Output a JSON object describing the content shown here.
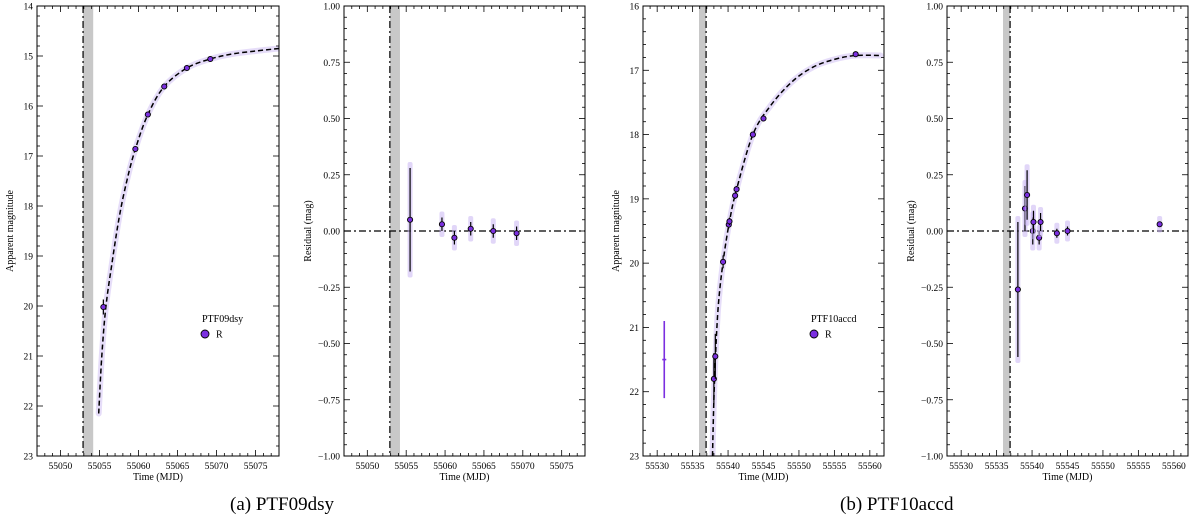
{
  "captions": {
    "a": "(a) PTF09dsy",
    "b": "(b) PTF10accd"
  },
  "colors": {
    "data": "#7b2fe0",
    "model_band": "#c8b4f2",
    "fit_line": "#000000",
    "shaded_region": "#c8c8c8"
  },
  "chart_data": [
    {
      "type": "scatter",
      "title": "",
      "xlabel": "Time (MJD)",
      "ylabel": "Apparent magnitude",
      "xlim": [
        55047,
        55078
      ],
      "ylim": [
        23,
        14
      ],
      "y_inverted": true,
      "xticks": [
        55050,
        55055,
        55060,
        55065,
        55070,
        55075
      ],
      "yticks": [
        14,
        15,
        16,
        17,
        18,
        19,
        20,
        21,
        22,
        23
      ],
      "vline": 55052.9,
      "shaded_x": [
        55052.9,
        55054.2
      ],
      "legend": {
        "title": "PTF09dsy",
        "entries": [
          "R"
        ],
        "placement": "center-right"
      },
      "series": [
        {
          "name": "R",
          "x": [
            55055.5,
            55059.6,
            55061.2,
            55063.3,
            55066.2,
            55069.2
          ],
          "y": [
            20.02,
            16.86,
            16.17,
            15.61,
            15.24,
            15.06
          ],
          "yerr": [
            0.15,
            0.04,
            0.04,
            0.03,
            0.03,
            0.03
          ]
        }
      ],
      "fit_curve": {
        "x": [
          55054.9,
          55055.3,
          55055.8,
          55056.5,
          55057.5,
          55058.5,
          55059.6,
          55061.2,
          55063.3,
          55066.2,
          55069.2,
          55072,
          55075,
          55078
        ],
        "y": [
          22.15,
          21.0,
          20.05,
          19.25,
          18.25,
          17.5,
          16.86,
          16.17,
          15.61,
          15.24,
          15.06,
          14.96,
          14.9,
          14.85
        ]
      }
    },
    {
      "type": "scatter",
      "title": "",
      "xlabel": "Time (MJD)",
      "ylabel": "Residual (mag)",
      "xlim": [
        55047,
        55078
      ],
      "ylim": [
        -1.0,
        1.0
      ],
      "xticks": [
        55050,
        55055,
        55060,
        55065,
        55070,
        55075
      ],
      "yticks": [
        -1.0,
        -0.75,
        -0.5,
        -0.25,
        0.0,
        0.25,
        0.5,
        0.75,
        1.0
      ],
      "ytick_labels": [
        "−1.00",
        "−0.75",
        "−0.50",
        "−0.25",
        "0.00",
        "0.25",
        "0.50",
        "0.75",
        "1.00"
      ],
      "vline": 55052.9,
      "shaded_x": [
        55052.9,
        55054.2
      ],
      "hline": 0,
      "series": [
        {
          "name": "R",
          "x": [
            55055.5,
            55059.6,
            55061.2,
            55063.3,
            55066.2,
            55069.2
          ],
          "y": [
            0.05,
            0.03,
            -0.03,
            0.01,
            0.0,
            -0.01
          ],
          "yerr": [
            0.23,
            0.03,
            0.03,
            0.03,
            0.03,
            0.03
          ]
        }
      ]
    },
    {
      "type": "scatter",
      "title": "",
      "xlabel": "Time (MJD)",
      "ylabel": "Apparent magnitude",
      "xlim": [
        55528,
        55562
      ],
      "ylim": [
        23,
        16
      ],
      "y_inverted": true,
      "xticks": [
        55530,
        55535,
        55540,
        55545,
        55550,
        55555,
        55560
      ],
      "yticks": [
        16,
        17,
        18,
        19,
        20,
        21,
        22,
        23
      ],
      "vline": 55536.9,
      "shaded_x": [
        55535.9,
        55536.9
      ],
      "legend": {
        "title": "PTF10accd",
        "entries": [
          "R"
        ],
        "placement": "center-right"
      },
      "series": [
        {
          "name": "R",
          "x": [
            55538.0,
            55538.2,
            55539.3,
            55540.1,
            55540.2,
            55541.0,
            55541.2,
            55543.5,
            55545.0,
            55558.0
          ],
          "y": [
            21.8,
            21.45,
            19.98,
            19.4,
            19.35,
            18.95,
            18.85,
            18.0,
            17.75,
            16.75
          ],
          "yerr": [
            0.4,
            0.35,
            0.1,
            0.06,
            0.06,
            0.05,
            0.05,
            0.04,
            0.04,
            0.03
          ]
        },
        {
          "name": "",
          "x": [
            55531.0
          ],
          "y": [
            21.5
          ],
          "yerr": [
            0.6
          ]
        }
      ],
      "fit_curve": {
        "x": [
          55537.8,
          55538.1,
          55538.6,
          55539.3,
          55540.2,
          55541.2,
          55543.5,
          55546,
          55549,
          55552,
          55555,
          55558,
          55561.5
        ],
        "y": [
          23.0,
          21.8,
          20.7,
          19.98,
          19.35,
          18.85,
          18.0,
          17.55,
          17.18,
          16.95,
          16.83,
          16.77,
          16.77
        ]
      }
    },
    {
      "type": "scatter",
      "title": "",
      "xlabel": "Time (MJD)",
      "ylabel": "Residual (mag)",
      "xlim": [
        55528,
        55562
      ],
      "ylim": [
        -1.0,
        1.0
      ],
      "xticks": [
        55530,
        55535,
        55540,
        55545,
        55550,
        55555,
        55560
      ],
      "yticks": [
        -1.0,
        -0.75,
        -0.5,
        -0.25,
        0.0,
        0.25,
        0.5,
        0.75,
        1.0
      ],
      "ytick_labels": [
        "−1.00",
        "−0.75",
        "−0.50",
        "−0.25",
        "0.00",
        "0.25",
        "0.50",
        "0.75",
        "1.00"
      ],
      "vline": 55536.9,
      "shaded_x": [
        55535.9,
        55536.9
      ],
      "hline": 0,
      "series": [
        {
          "name": "R",
          "x": [
            55538.0,
            55539.0,
            55539.3,
            55540.1,
            55540.2,
            55541.0,
            55541.2,
            55543.5,
            55545.0,
            55558.0
          ],
          "y": [
            -0.26,
            0.1,
            0.16,
            0.0,
            0.04,
            -0.03,
            0.04,
            -0.01,
            0.0,
            0.03
          ],
          "yerr": [
            0.3,
            0.1,
            0.11,
            0.06,
            0.05,
            0.03,
            0.04,
            0.02,
            0.02,
            0.01
          ]
        }
      ]
    }
  ]
}
